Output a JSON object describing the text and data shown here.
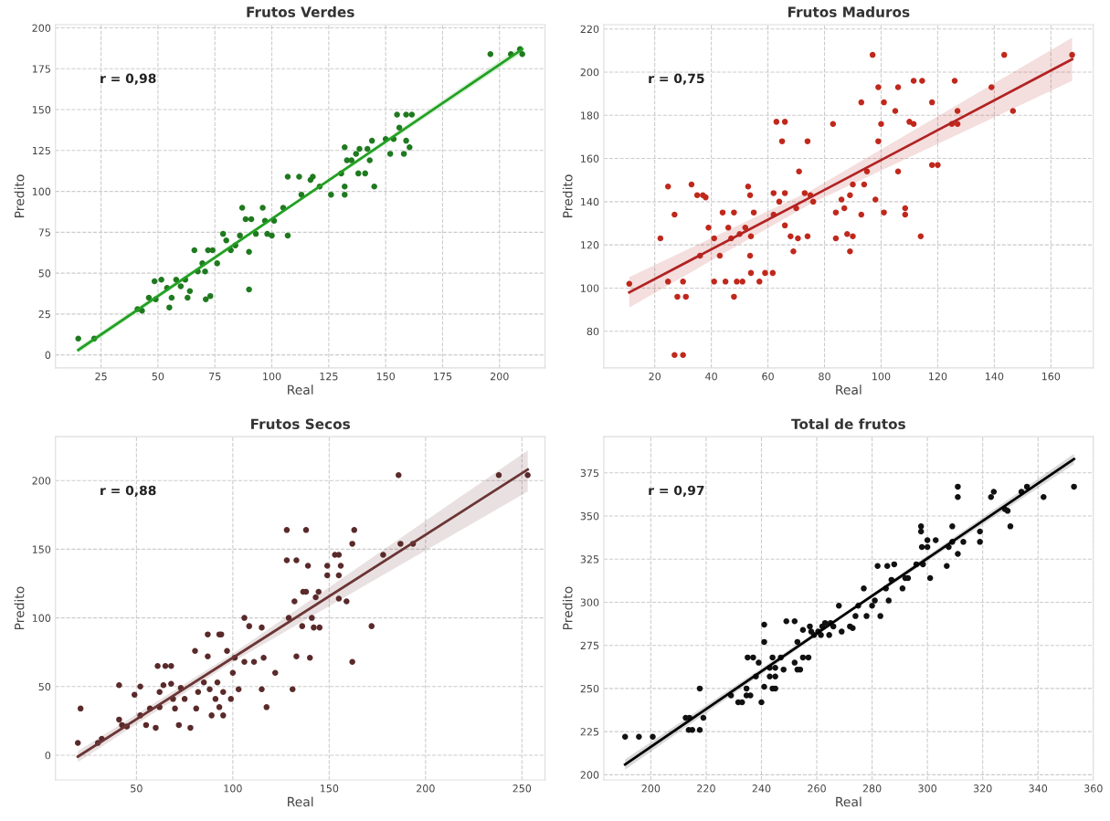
{
  "chart_data": [
    {
      "type": "scatter",
      "title": "Frutos Verdes",
      "xlabel": "Real",
      "ylabel": "Predito",
      "annotations": [
        "r = 0,98"
      ],
      "xlim": [
        5,
        220
      ],
      "ylim": [
        -8,
        202
      ],
      "xticks": [
        25,
        50,
        75,
        100,
        125,
        150,
        175,
        200
      ],
      "yticks": [
        0,
        25,
        50,
        75,
        100,
        125,
        150,
        175,
        200
      ],
      "grid": true,
      "series": [
        {
          "marker": "circle",
          "color": "#1f7a1f",
          "x": [
            15,
            22,
            41,
            43,
            46,
            48.5,
            49,
            51.5,
            54,
            55,
            56,
            58,
            60,
            62,
            63,
            64,
            66,
            67.5,
            69.5,
            70.7,
            71,
            73,
            72,
            74,
            76,
            78.6,
            80,
            82,
            84,
            86,
            87,
            88.5,
            90,
            90,
            91,
            93,
            96,
            97,
            98,
            100,
            101,
            105,
            107,
            107,
            112,
            113,
            117,
            118,
            121,
            126,
            130.5,
            132,
            132,
            132,
            133,
            135,
            137,
            138,
            138.5,
            141,
            142,
            143,
            144,
            145,
            150,
            152,
            153.5,
            155,
            156,
            158,
            159,
            159,
            160.5,
            161.5,
            196,
            205,
            209,
            210
          ],
          "values": [
            10,
            10,
            28,
            27,
            35,
            45,
            34,
            46,
            41,
            29,
            35,
            46,
            42,
            46,
            35,
            39,
            64,
            51,
            56,
            51,
            34,
            36,
            64,
            64,
            56,
            74,
            70,
            64,
            67,
            73,
            90,
            83,
            63,
            40,
            83,
            74,
            90,
            82,
            74,
            73,
            82,
            90,
            73,
            109,
            109,
            98,
            107,
            109,
            103,
            98,
            111,
            103,
            98,
            127,
            119,
            119,
            123,
            111,
            126,
            111,
            126,
            119,
            131,
            103,
            132,
            123,
            132,
            147,
            139,
            123,
            131,
            147,
            127,
            147,
            184,
            184,
            187,
            184
          ]
        },
        {
          "type": "line",
          "color": "#22a022",
          "x": [
            15,
            112,
            210
          ],
          "values": [
            3,
            94.5,
            187
          ],
          "lower": [
            1,
            93.5,
            184.5
          ],
          "upper": [
            5,
            95.5,
            189.5
          ]
        }
      ]
    },
    {
      "type": "scatter",
      "title": "Frutos Maduros",
      "xlabel": "Real",
      "ylabel": "Predito",
      "annotations": [
        "r = 0,75"
      ],
      "xlim": [
        2,
        175
      ],
      "ylim": [
        63,
        222
      ],
      "xticks": [
        20,
        40,
        60,
        80,
        100,
        120,
        140,
        160
      ],
      "yticks": [
        80,
        100,
        120,
        140,
        160,
        180,
        200,
        220
      ],
      "grid": true,
      "series": [
        {
          "marker": "circle",
          "color": "#c0281c",
          "x": [
            11,
            22,
            24.7,
            24.7,
            27,
            27,
            28,
            30,
            30,
            31,
            33,
            35,
            37,
            38,
            36,
            39,
            41,
            41,
            43,
            44,
            45,
            46,
            47,
            48,
            48,
            49,
            51,
            50,
            52,
            53,
            53.7,
            53.7,
            54,
            55,
            54,
            57,
            59,
            61.7,
            62,
            62,
            63,
            64,
            65,
            66,
            66,
            66,
            68,
            69,
            70,
            70.6,
            71,
            74,
            74,
            73,
            75,
            76,
            83,
            84,
            84,
            86,
            87,
            88,
            89,
            90,
            89,
            90,
            93,
            93,
            94,
            95,
            97,
            98,
            99,
            99,
            100,
            101,
            101,
            105,
            106,
            106,
            108.5,
            108.5,
            110,
            111.5,
            111.5,
            114,
            114.5,
            118,
            118,
            120,
            125,
            126,
            127,
            127,
            139,
            143.5,
            146.6,
            167.5
          ],
          "values": [
            102,
            123,
            147,
            103,
            134,
            69,
            96,
            69,
            103,
            96,
            148,
            143,
            143,
            142,
            115,
            128,
            123,
            103,
            115,
            135,
            103,
            128,
            123,
            135,
            96,
            103,
            103,
            125,
            128,
            147,
            143,
            115,
            124,
            135,
            107,
            103,
            107,
            107,
            134,
            144,
            177,
            140,
            168,
            177,
            144,
            129,
            124,
            117,
            137,
            123,
            154,
            168,
            124,
            144,
            143,
            140,
            176,
            135,
            123,
            141,
            137,
            125,
            117,
            124,
            143,
            148,
            186,
            134,
            148,
            154,
            208,
            141,
            193,
            168,
            176,
            186,
            135,
            182,
            193,
            154,
            137,
            134,
            177,
            176,
            196,
            124,
            196,
            186,
            157,
            157,
            176,
            196,
            176,
            182,
            193,
            208,
            182,
            208
          ]
        },
        {
          "type": "line",
          "color": "#b22222",
          "x": [
            11,
            75,
            167.5
          ],
          "values": [
            98,
            142,
            206
          ],
          "lower": [
            91,
            139,
            196
          ],
          "upper": [
            105,
            145,
            216
          ]
        }
      ]
    },
    {
      "type": "scatter",
      "title": "Frutos Secos",
      "xlabel": "Real",
      "ylabel": "Predito",
      "annotations": [
        "r = 0,88"
      ],
      "xlim": [
        8,
        262
      ],
      "ylim": [
        -18,
        232
      ],
      "xticks": [
        50,
        100,
        150,
        200,
        250
      ],
      "yticks": [
        0,
        50,
        100,
        150,
        200
      ],
      "grid": true,
      "series": [
        {
          "marker": "circle",
          "color": "#5a2a2a",
          "x": [
            19.6,
            21,
            30,
            32,
            41,
            41,
            42.5,
            45,
            49,
            52,
            52,
            55,
            57,
            60,
            62,
            62,
            61,
            65,
            68,
            64,
            68,
            70,
            69,
            72,
            73,
            75,
            78,
            80.4,
            81,
            82,
            87,
            87,
            85,
            88,
            89,
            91,
            92,
            93,
            94,
            93,
            95,
            97,
            95,
            99,
            100,
            101,
            103,
            106,
            106,
            108.5,
            111,
            115,
            115,
            116,
            117.5,
            122,
            128,
            128,
            129,
            131,
            132,
            133,
            133,
            136.5,
            138,
            138,
            139,
            136,
            140,
            141,
            143,
            142,
            145,
            144.5,
            149,
            149,
            153,
            155,
            155,
            156,
            155,
            159,
            162,
            162,
            163,
            172,
            178,
            186,
            187,
            193.5,
            238,
            253
          ],
          "values": [
            9,
            34,
            9,
            12,
            26,
            51,
            22,
            21,
            44,
            50,
            29,
            22,
            34,
            20,
            35,
            46,
            65,
            65,
            65,
            51,
            52,
            34,
            41,
            22,
            49,
            41,
            20,
            76,
            34,
            46,
            88,
            72,
            53,
            48,
            29,
            41,
            53,
            88,
            88,
            35,
            29,
            76,
            46,
            41,
            60,
            71,
            48,
            100,
            68,
            94,
            68,
            93,
            48,
            71,
            35,
            60,
            164,
            142,
            100,
            48,
            112,
            142,
            72,
            119,
            164,
            119,
            138,
            94,
            71,
            100,
            115,
            93,
            93,
            119,
            138,
            131,
            146,
            146,
            131,
            138,
            114,
            112,
            68,
            154,
            164,
            94,
            146,
            204,
            154,
            154,
            204,
            204
          ]
        },
        {
          "type": "line",
          "color": "#6b3535",
          "x": [
            19.6,
            100,
            253
          ],
          "values": [
            -1,
            71,
            208
          ],
          "lower": [
            -5,
            68,
            192
          ],
          "upper": [
            3,
            74,
            222
          ]
        }
      ]
    },
    {
      "type": "scatter",
      "title": "Total de frutos",
      "xlabel": "Real",
      "ylabel": "Predito",
      "annotations": [
        "r = 0,97"
      ],
      "xlim": [
        183,
        360
      ],
      "ylim": [
        197,
        396
      ],
      "xticks": [
        200,
        220,
        240,
        260,
        280,
        300,
        320,
        340,
        360
      ],
      "yticks": [
        200,
        225,
        250,
        275,
        300,
        325,
        350,
        375
      ],
      "grid": true,
      "series": [
        {
          "marker": "circle",
          "color": "#111111",
          "x": [
            190.7,
            195.7,
            200.7,
            212.6,
            214,
            213.7,
            215,
            217.7,
            217.7,
            219,
            229,
            231.6,
            233,
            234.6,
            234.6,
            236,
            235,
            237,
            238,
            239,
            240,
            241,
            241,
            241,
            243,
            243,
            244,
            244,
            245,
            245,
            245,
            247,
            248,
            249,
            252,
            252,
            253,
            253,
            254,
            255,
            255,
            257,
            257.5,
            258,
            259,
            260.5,
            261.5,
            262,
            263,
            264.5,
            265,
            266,
            268,
            269,
            272,
            273,
            274,
            275,
            277,
            278,
            280,
            281,
            282,
            283,
            285,
            285.5,
            286,
            287,
            288,
            291,
            292,
            293,
            296,
            297.7,
            297.7,
            298,
            298.4,
            300,
            300,
            301,
            303,
            307,
            307.7,
            309,
            309,
            311,
            311,
            311,
            313,
            319,
            319,
            323,
            324,
            328,
            329,
            330,
            334,
            336,
            342,
            353
          ],
          "values": [
            222,
            222,
            222,
            233,
            233,
            226,
            226,
            226,
            250,
            233,
            246,
            242,
            242,
            250,
            246,
            246,
            268,
            268,
            257,
            265,
            242,
            287,
            277,
            251,
            257,
            262,
            268,
            250,
            257,
            250,
            262,
            268,
            261,
            289,
            289,
            265,
            277,
            261,
            261,
            284,
            268,
            268,
            286,
            283,
            281,
            283,
            281,
            286,
            288,
            281,
            288,
            286,
            298,
            283,
            286,
            285,
            292,
            298,
            308,
            292,
            298,
            301,
            321,
            292,
            308,
            321,
            301,
            313,
            322,
            308,
            314,
            314,
            322,
            344,
            341,
            332,
            322,
            336,
            332,
            314,
            336,
            321,
            332,
            344,
            335,
            367,
            361,
            328,
            335,
            335,
            341,
            361,
            364,
            354,
            353,
            344,
            364,
            367,
            361,
            367
          ]
        },
        {
          "type": "line",
          "color": "#000000",
          "x": [
            190.7,
            272,
            353
          ],
          "values": [
            206,
            295,
            383
          ],
          "lower": [
            203,
            294,
            380
          ],
          "upper": [
            209,
            296,
            386
          ]
        }
      ]
    }
  ]
}
